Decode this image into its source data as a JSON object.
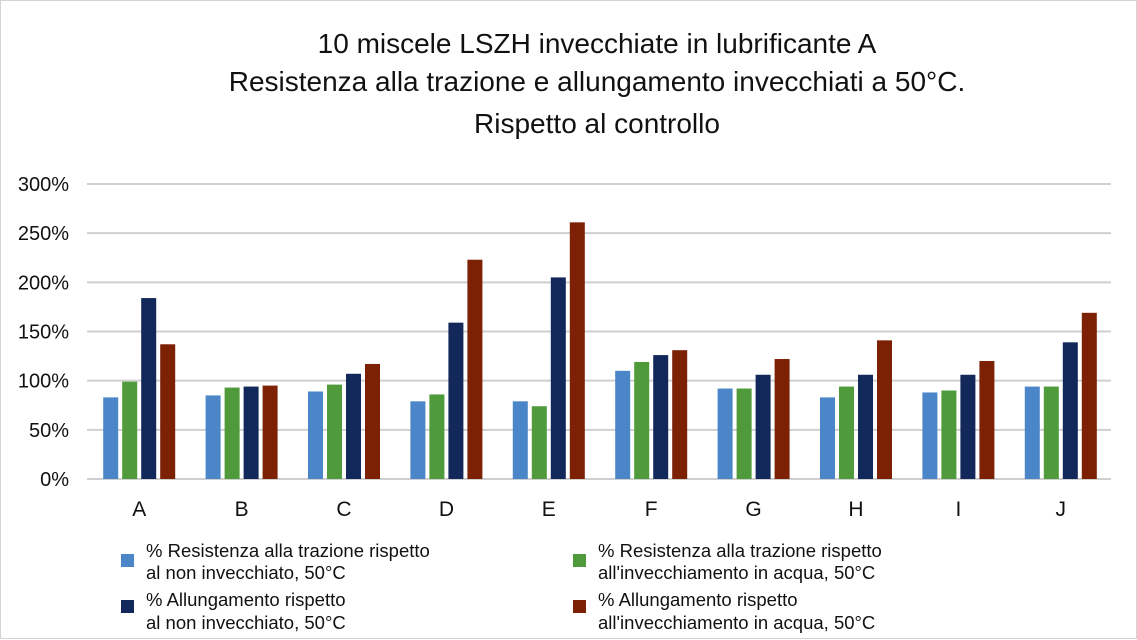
{
  "chart_data": {
    "type": "bar",
    "title": [
      "10 miscele LSZH invecchiate in lubrificante A",
      "Resistenza alla trazione e allungamento invecchiati a 50°C.",
      "Rispetto al controllo"
    ],
    "categories": [
      "A",
      "B",
      "C",
      "D",
      "E",
      "F",
      "G",
      "H",
      "I",
      "J"
    ],
    "ylim": [
      0,
      300
    ],
    "yticks": [
      0,
      50,
      100,
      150,
      200,
      250,
      300
    ],
    "ytick_labels": [
      "0%",
      "50%",
      "100%",
      "150%",
      "200%",
      "250%",
      "300%"
    ],
    "grid": true,
    "legend_position": "bottom",
    "series": [
      {
        "name": [
          "% Resistenza alla trazione rispetto",
          "al non invecchiato, 50°C"
        ],
        "color": "#4a86c8",
        "values": [
          83,
          85,
          89,
          79,
          79,
          110,
          92,
          83,
          88,
          94
        ]
      },
      {
        "name": [
          "% Resistenza alla trazione rispetto",
          "all'invecchiamento in acqua, 50°C"
        ],
        "color": "#4f9a3a",
        "values": [
          99,
          93,
          96,
          86,
          74,
          119,
          92,
          94,
          90,
          94
        ]
      },
      {
        "name": [
          "% Allungamento rispetto",
          "al non invecchiato, 50°C"
        ],
        "color": "#13285a",
        "values": [
          184,
          94,
          107,
          159,
          205,
          126,
          106,
          106,
          106,
          139
        ]
      },
      {
        "name": [
          "% Allungamento rispetto",
          "all'invecchiamento in acqua, 50°C"
        ],
        "color": "#7c2104",
        "values": [
          137,
          95,
          117,
          223,
          261,
          131,
          122,
          141,
          120,
          169
        ]
      }
    ]
  }
}
